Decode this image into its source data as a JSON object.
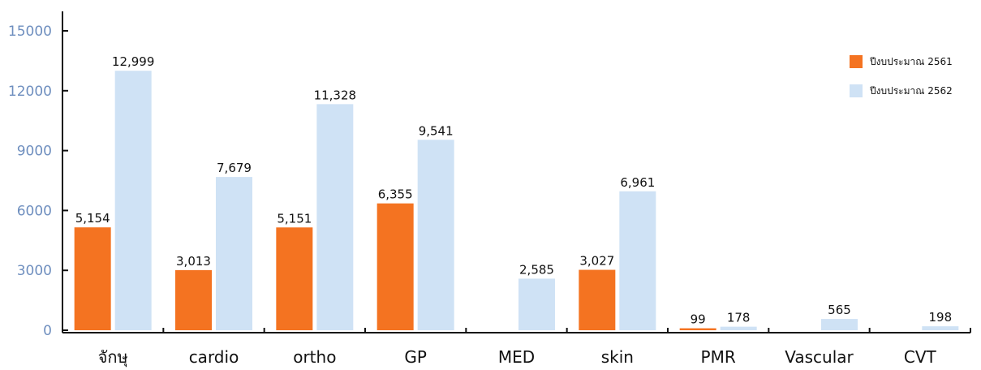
{
  "chart_data": {
    "type": "bar",
    "categories": [
      "จักษุ",
      "cardio",
      "ortho",
      "GP",
      "MED",
      "skin",
      "PMR",
      "Vascular",
      "CVT"
    ],
    "series": [
      {
        "name": "ปีงบประมาณ 2561",
        "color": "#f47321",
        "values": [
          5154,
          3013,
          5151,
          6355,
          null,
          3027,
          99,
          null,
          null
        ],
        "labels": [
          "5,154",
          "3,013",
          "5,151",
          "6,355",
          "",
          "3,027",
          "99",
          "",
          ""
        ]
      },
      {
        "name": "ปีงบประมาณ 2562",
        "color": "#cfe2f5",
        "values": [
          12999,
          7679,
          11328,
          9541,
          2585,
          6961,
          178,
          565,
          198
        ],
        "labels": [
          "12,999",
          "7,679",
          "11,328",
          "9,541",
          "2,585",
          "6,961",
          "178",
          "565",
          "198"
        ]
      }
    ],
    "yticks": [
      "0",
      "3000",
      "6000",
      "9000",
      "12000",
      "15000"
    ],
    "ylim": [
      0,
      15000
    ],
    "title": "",
    "xlabel": "",
    "ylabel": "",
    "grid": false,
    "legend_position": "right"
  }
}
